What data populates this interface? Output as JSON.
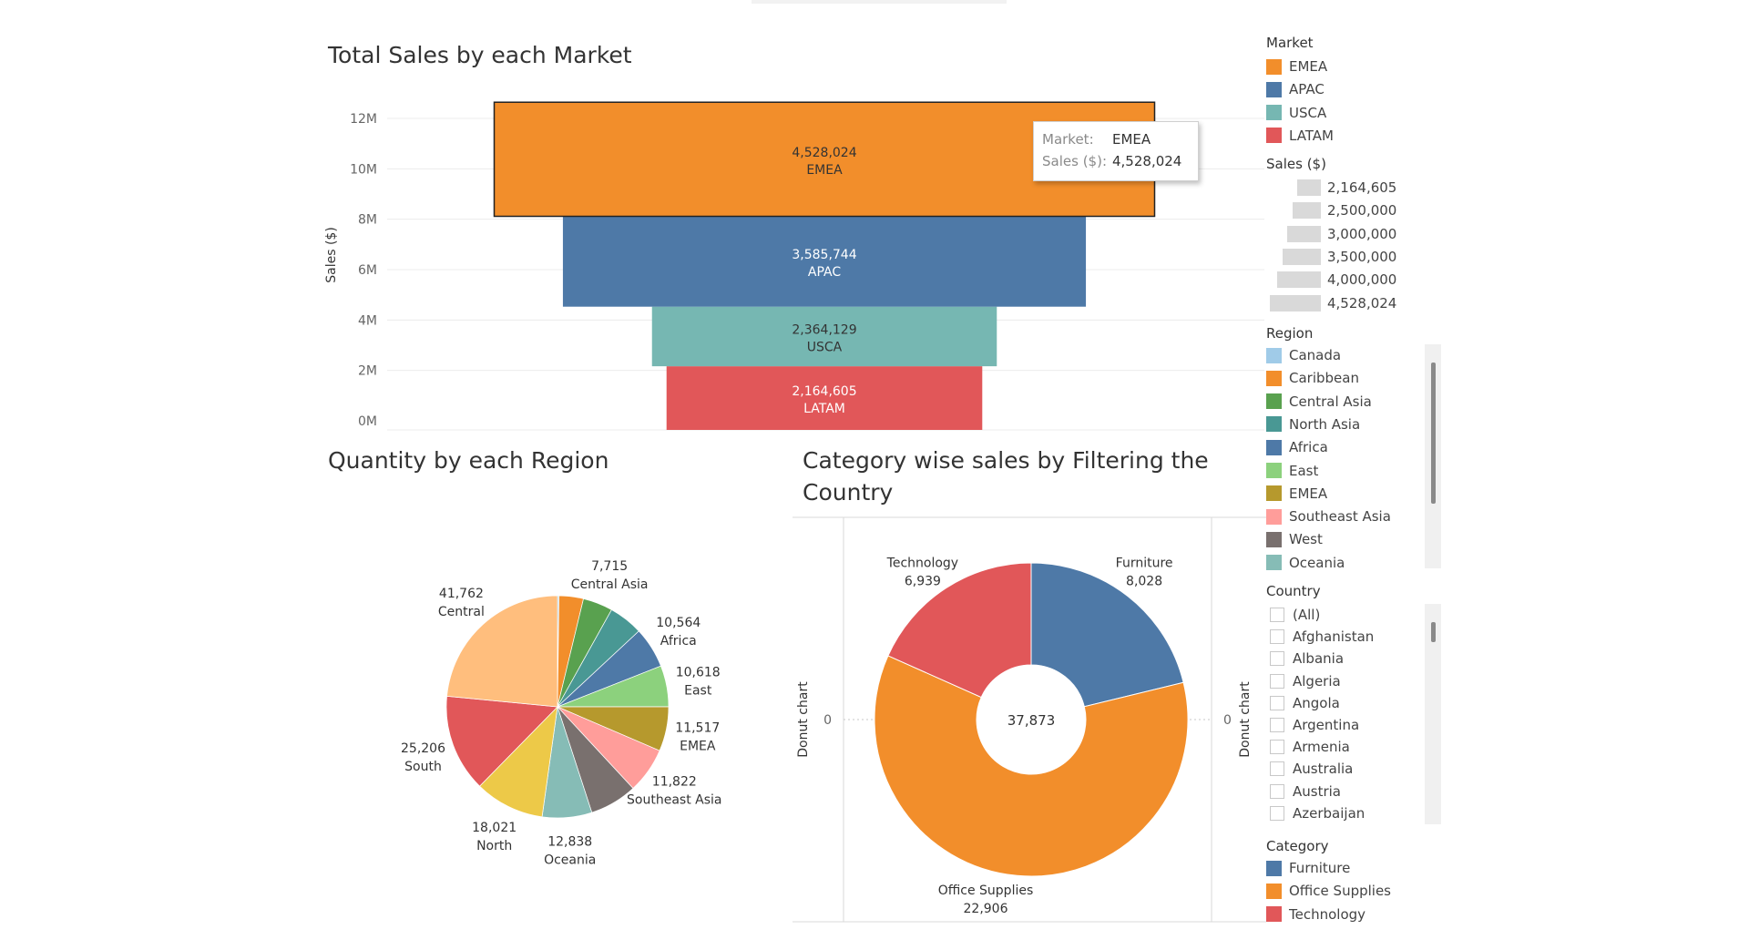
{
  "titles": {
    "funnel": "Total Sales by each Market",
    "pie": "Quantity by each Region",
    "donut": "Category wise sales by Filtering the Country"
  },
  "funnel": {
    "y_axis_label": "Sales ($)",
    "ticks": [
      "12M",
      "10M",
      "8M",
      "6M",
      "4M",
      "2M",
      "0M"
    ]
  },
  "tooltip": {
    "market_key": "Market:",
    "market_value": "EMEA",
    "sales_key": "Sales ($):",
    "sales_value": "4,528,024"
  },
  "donut_axes": {
    "left_label": "Donut chart",
    "right_label": "Donut chart",
    "left_tick": "0",
    "right_tick": "0"
  },
  "legends": {
    "market": {
      "title": "Market",
      "items": [
        {
          "label": "EMEA",
          "color": "#F28E2B"
        },
        {
          "label": "APAC",
          "color": "#4E79A7"
        },
        {
          "label": "USCA",
          "color": "#76B7B2"
        },
        {
          "label": "LATAM",
          "color": "#E15759"
        }
      ]
    },
    "sales": {
      "title": "Sales ($)",
      "items": [
        "2,164,605",
        "2,500,000",
        "3,000,000",
        "3,500,000",
        "4,000,000",
        "4,528,024"
      ]
    },
    "region": {
      "title": "Region",
      "items": [
        {
          "label": "Canada",
          "color": "#A0CBE8"
        },
        {
          "label": "Caribbean",
          "color": "#F28E2B"
        },
        {
          "label": "Central Asia",
          "color": "#59A14F"
        },
        {
          "label": "North Asia",
          "color": "#499894"
        },
        {
          "label": "Africa",
          "color": "#4E79A7"
        },
        {
          "label": "East",
          "color": "#8CD17D"
        },
        {
          "label": "EMEA",
          "color": "#B6992D"
        },
        {
          "label": "Southeast Asia",
          "color": "#FF9D9A"
        },
        {
          "label": "West",
          "color": "#79706E"
        },
        {
          "label": "Oceania",
          "color": "#86BCB6"
        }
      ]
    },
    "country": {
      "title": "Country",
      "items": [
        "(All)",
        "Afghanistan",
        "Albania",
        "Algeria",
        "Angola",
        "Argentina",
        "Armenia",
        "Australia",
        "Austria",
        "Azerbaijan"
      ]
    },
    "category": {
      "title": "Category",
      "items": [
        {
          "label": "Furniture",
          "color": "#4E79A7"
        },
        {
          "label": "Office Supplies",
          "color": "#F28E2B"
        },
        {
          "label": "Technology",
          "color": "#E15759"
        }
      ]
    }
  },
  "chart_data": [
    {
      "type": "bar",
      "title": "Total Sales by each Market",
      "ylabel": "Sales ($)",
      "ylim": [
        0,
        12000000
      ],
      "categories": [
        "EMEA",
        "APAC",
        "USCA",
        "LATAM"
      ],
      "values": [
        4528024,
        3585744,
        2364129,
        2164605
      ],
      "value_labels": [
        "4,528,024",
        "3,585,744",
        "2,364,129",
        "2,164,605"
      ],
      "colors": [
        "#F28E2B",
        "#4E79A7",
        "#76B7B2",
        "#E15759"
      ],
      "highlighted": "EMEA"
    },
    {
      "type": "pie",
      "title": "Quantity by each Region",
      "slices": [
        {
          "label": "Canada",
          "value": 384,
          "color": "#A0CBE8",
          "value_label": ""
        },
        {
          "label": "Caribbean",
          "value": 6299,
          "color": "#F28E2B",
          "value_label": ""
        },
        {
          "label": "Central Asia",
          "value": 7715,
          "color": "#59A14F",
          "value_label": "7,715"
        },
        {
          "label": "North Asia",
          "value": 8851,
          "color": "#499894",
          "value_label": ""
        },
        {
          "label": "Africa",
          "value": 10564,
          "color": "#4E79A7",
          "value_label": "10,564"
        },
        {
          "label": "East",
          "value": 10618,
          "color": "#8CD17D",
          "value_label": "10,618"
        },
        {
          "label": "EMEA",
          "value": 11517,
          "color": "#B6992D",
          "value_label": "11,517"
        },
        {
          "label": "Southeast Asia",
          "value": 11822,
          "color": "#FF9D9A",
          "value_label": "11,822"
        },
        {
          "label": "West",
          "value": 12266,
          "color": "#79706E",
          "value_label": ""
        },
        {
          "label": "Oceania",
          "value": 12838,
          "color": "#86BCB6",
          "value_label": "12,838"
        },
        {
          "label": "North",
          "value": 18021,
          "color": "#EDC948",
          "value_label": "18,021"
        },
        {
          "label": "South",
          "value": 25206,
          "color": "#E15759",
          "value_label": "25,206"
        },
        {
          "label": "Central",
          "value": 41762,
          "color": "#FFBE7D",
          "value_label": "41,762"
        }
      ]
    },
    {
      "type": "pie",
      "title": "Category wise sales by Filtering the Country",
      "center_label": "37,873",
      "slices": [
        {
          "label": "Furniture",
          "value": 8028,
          "value_label": "8,028",
          "color": "#4E79A7"
        },
        {
          "label": "Office Supplies",
          "value": 22906,
          "value_label": "22,906",
          "color": "#F28E2B"
        },
        {
          "label": "Technology",
          "value": 6939,
          "value_label": "6,939",
          "color": "#E15759"
        }
      ]
    }
  ]
}
